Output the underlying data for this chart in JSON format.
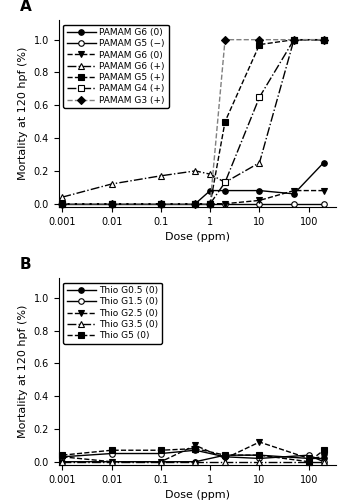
{
  "panel_A_title": "A",
  "panel_B_title": "B",
  "xlabel": "Dose (ppm)",
  "ylabel": "Mortality at 120 hpf (%)",
  "ylim_A": [
    -0.02,
    1.12
  ],
  "ylim_B": [
    -0.02,
    1.12
  ],
  "yticks_A": [
    0.0,
    0.2,
    0.4,
    0.6,
    0.8,
    1.0
  ],
  "yticks_B": [
    0.0,
    0.2,
    0.4,
    0.6,
    0.8,
    1.0
  ],
  "xlim": [
    0.00085,
    350
  ],
  "series_A": [
    {
      "label": "PAMAM G6 (0)",
      "x": [
        0.001,
        0.01,
        0.1,
        0.5,
        1,
        2,
        10,
        50,
        200
      ],
      "y": [
        0.0,
        0.0,
        0.0,
        0.0,
        0.08,
        0.08,
        0.08,
        0.06,
        0.25
      ],
      "color": "black",
      "marker": "o",
      "fillstyle": "full",
      "linestyle": "-",
      "linewidth": 1.0,
      "markersize": 4
    },
    {
      "label": "PAMAM G5 (−)",
      "x": [
        0.001,
        0.01,
        0.1,
        0.5,
        1,
        2,
        10,
        50,
        200
      ],
      "y": [
        0.0,
        0.0,
        0.0,
        0.0,
        0.0,
        0.0,
        0.0,
        0.0,
        0.0
      ],
      "color": "black",
      "marker": "o",
      "fillstyle": "none",
      "linestyle": "-",
      "linewidth": 1.0,
      "markersize": 4
    },
    {
      "label": "PAMAM G6 (0)",
      "x": [
        0.001,
        0.01,
        0.1,
        0.5,
        1,
        2,
        10,
        50,
        200
      ],
      "y": [
        0.0,
        0.0,
        0.0,
        0.0,
        0.0,
        0.0,
        0.02,
        0.08,
        0.08
      ],
      "color": "black",
      "marker": "v",
      "fillstyle": "full",
      "linestyle": "--",
      "linewidth": 1.0,
      "markersize": 4
    },
    {
      "label": "PAMAM G6 (+)",
      "x": [
        0.001,
        0.01,
        0.1,
        0.5,
        1,
        2,
        10,
        50,
        200
      ],
      "y": [
        0.04,
        0.12,
        0.17,
        0.2,
        0.18,
        0.13,
        0.25,
        1.0,
        1.0
      ],
      "color": "black",
      "marker": "^",
      "fillstyle": "none",
      "linestyle": "-.",
      "linewidth": 1.0,
      "markersize": 4
    },
    {
      "label": "PAMAM G5 (+)",
      "x": [
        0.001,
        0.01,
        0.1,
        0.5,
        1,
        2,
        10,
        50,
        200
      ],
      "y": [
        0.0,
        0.0,
        0.0,
        0.0,
        0.0,
        0.5,
        0.97,
        1.0,
        1.0
      ],
      "color": "black",
      "marker": "s",
      "fillstyle": "full",
      "linestyle": "--",
      "linewidth": 1.0,
      "markersize": 4
    },
    {
      "label": "PAMAM G4 (+)",
      "x": [
        0.001,
        0.01,
        0.1,
        0.5,
        1,
        2,
        10,
        50,
        200
      ],
      "y": [
        0.0,
        0.0,
        0.0,
        0.0,
        0.0,
        0.13,
        0.65,
        1.0,
        1.0
      ],
      "color": "black",
      "marker": "s",
      "fillstyle": "none",
      "linestyle": "-.",
      "linewidth": 1.0,
      "markersize": 4
    },
    {
      "label": "PAMAM G3 (+)",
      "x": [
        0.001,
        0.01,
        0.1,
        0.5,
        1,
        2,
        10,
        50,
        200
      ],
      "y": [
        0.0,
        0.0,
        0.0,
        0.0,
        0.0,
        1.0,
        1.0,
        1.0,
        1.0
      ],
      "color": "black",
      "marker": "D",
      "fillstyle": "full",
      "linestyle": "--",
      "linewidth": 1.0,
      "markersize": 4,
      "line_color": "gray"
    }
  ],
  "series_B": [
    {
      "label": "Thio G0.5 (0)",
      "x": [
        0.001,
        0.01,
        0.1,
        0.5,
        2,
        10,
        100,
        200
      ],
      "y": [
        0.0,
        0.0,
        0.0,
        0.0,
        0.04,
        0.04,
        0.02,
        0.02
      ],
      "color": "black",
      "marker": "o",
      "fillstyle": "full",
      "linestyle": "-",
      "linewidth": 1.0,
      "markersize": 4
    },
    {
      "label": "Thio G1.5 (0)",
      "x": [
        0.001,
        0.01,
        0.1,
        0.5,
        2,
        10,
        100,
        200
      ],
      "y": [
        0.03,
        0.05,
        0.05,
        0.07,
        0.03,
        0.02,
        0.04,
        0.0
      ],
      "color": "black",
      "marker": "o",
      "fillstyle": "none",
      "linestyle": "-",
      "linewidth": 1.0,
      "markersize": 4
    },
    {
      "label": "Thio G2.5 (0)",
      "x": [
        0.001,
        0.01,
        0.1,
        0.5,
        2,
        10,
        100,
        200
      ],
      "y": [
        0.03,
        0.0,
        0.0,
        0.1,
        0.02,
        0.12,
        0.02,
        0.03
      ],
      "color": "black",
      "marker": "v",
      "fillstyle": "full",
      "linestyle": "--",
      "linewidth": 1.0,
      "markersize": 4
    },
    {
      "label": "Thio G3.5 (0)",
      "x": [
        0.001,
        0.01,
        0.1,
        0.5,
        2,
        10,
        100,
        200
      ],
      "y": [
        0.0,
        0.0,
        0.0,
        0.0,
        0.0,
        0.0,
        0.0,
        0.0
      ],
      "color": "black",
      "marker": "^",
      "fillstyle": "none",
      "linestyle": "-.",
      "linewidth": 1.0,
      "markersize": 4
    },
    {
      "label": "Thio G5 (0)",
      "x": [
        0.001,
        0.01,
        0.1,
        0.5,
        2,
        10,
        100,
        200
      ],
      "y": [
        0.04,
        0.07,
        0.07,
        0.08,
        0.04,
        0.04,
        0.0,
        0.07
      ],
      "color": "black",
      "marker": "s",
      "fillstyle": "full",
      "linestyle": "--",
      "linewidth": 1.0,
      "markersize": 4
    }
  ],
  "legend_fontsize": 6.5,
  "tick_fontsize": 7,
  "label_fontsize": 8,
  "xtick_vals": [
    0.001,
    0.01,
    0.1,
    1,
    10,
    100
  ],
  "xtick_labels": [
    "0.001",
    "0.01",
    "0.1",
    "1",
    "10",
    "100"
  ]
}
